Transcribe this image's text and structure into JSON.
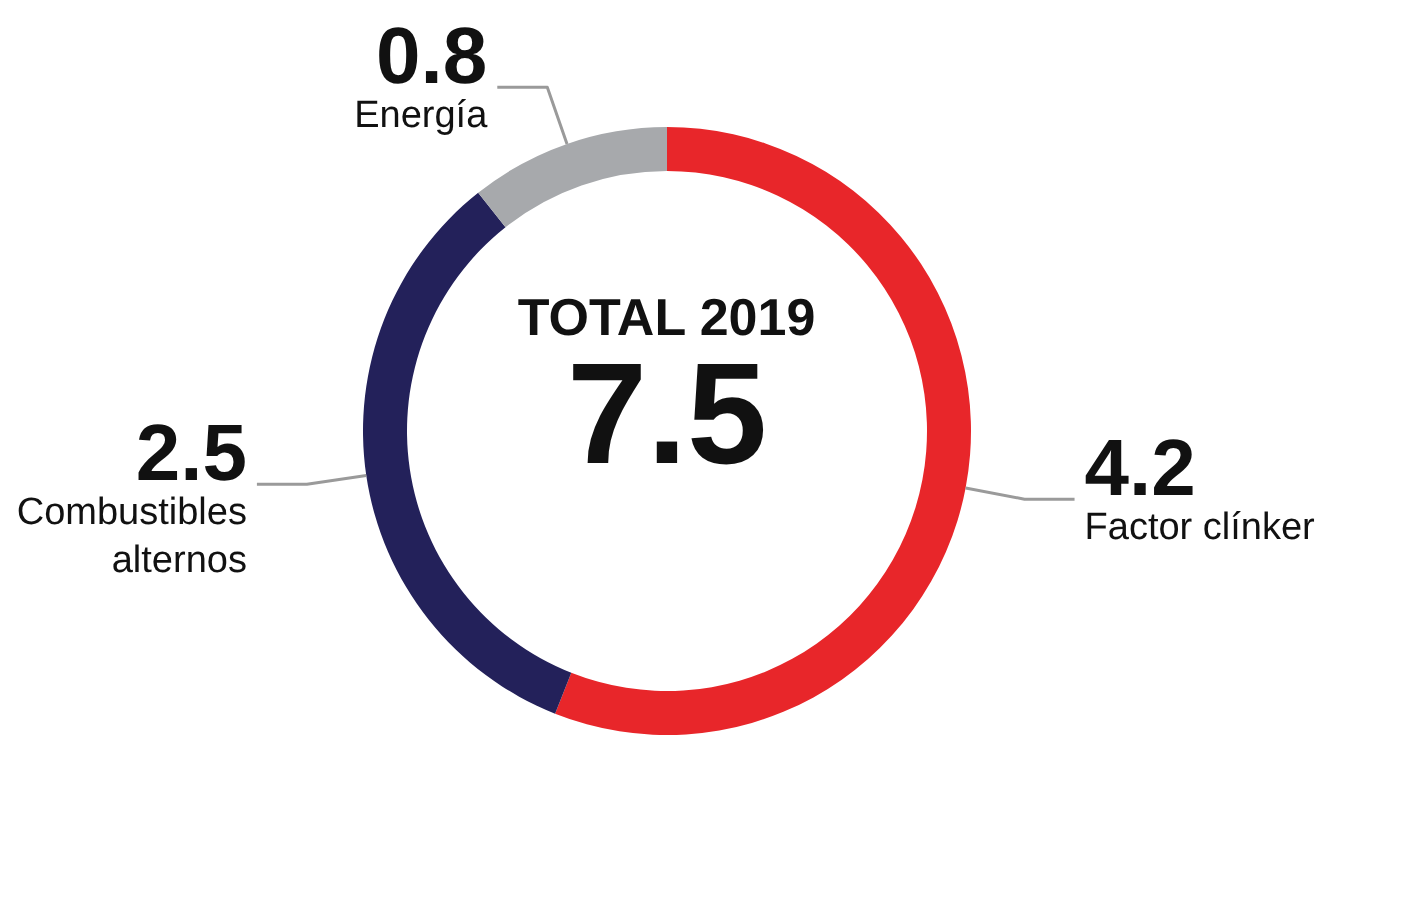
{
  "chart_data": {
    "type": "donut",
    "categories": [
      "Factor clínker",
      "Combustibles alternos",
      "Energía"
    ],
    "values": [
      4.2,
      2.5,
      0.8
    ],
    "colors": [
      "#e8262a",
      "#23215a",
      "#a7a9ac"
    ],
    "data_labels": true,
    "annotations": [
      "TOTAL 2019",
      "7.5"
    ]
  }
}
